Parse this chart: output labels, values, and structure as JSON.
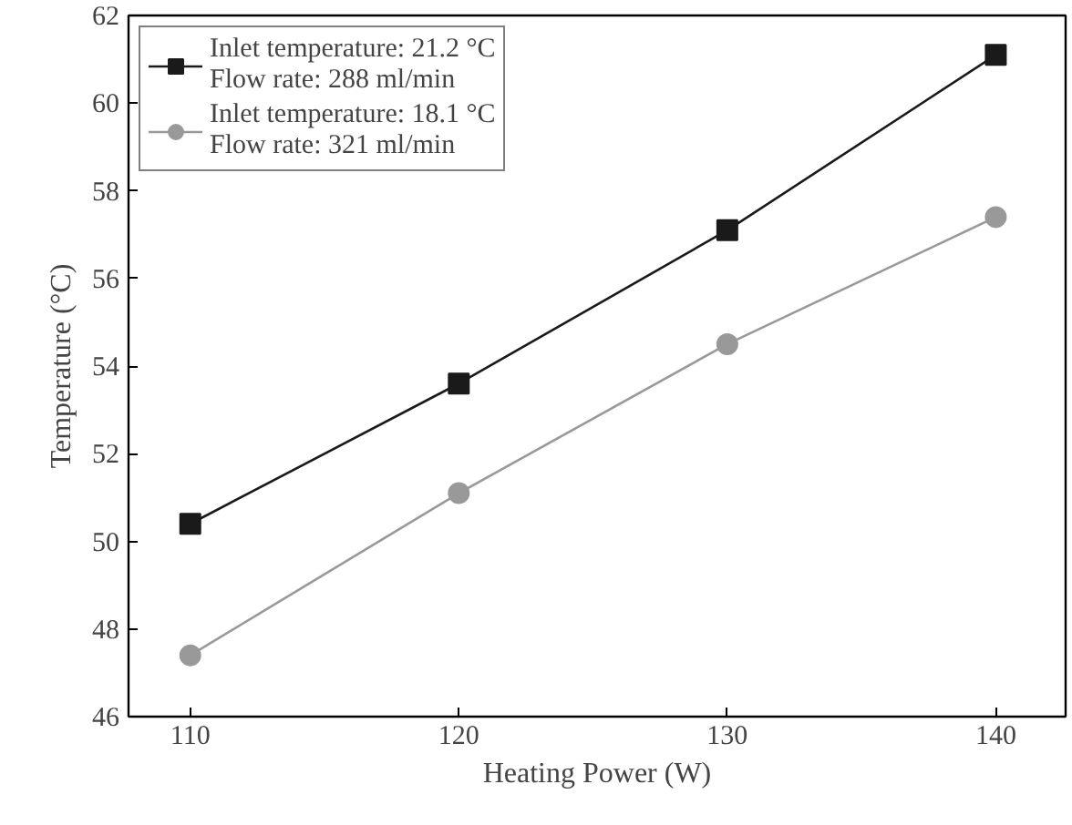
{
  "chart_data": {
    "type": "line",
    "xlabel": "Heating Power (W)",
    "ylabel": "Temperature (°C)",
    "x": [
      110,
      120,
      130,
      140
    ],
    "series": [
      {
        "name": "Inlet temperature: 21.2 °C\nFlow rate: 288 ml/min",
        "color": "#1a1a1a",
        "marker": "square",
        "values": [
          50.4,
          53.6,
          57.1,
          61.1
        ]
      },
      {
        "name": "Inlet temperature: 18.1 °C\nFlow rate: 321 ml/min",
        "color": "#999999",
        "marker": "circle",
        "values": [
          47.4,
          51.1,
          54.5,
          57.4
        ]
      }
    ],
    "xlim": [
      107.7,
      142.6
    ],
    "xticks": [
      110,
      120,
      130,
      140
    ],
    "ylim": [
      46,
      62
    ],
    "yticks": [
      46,
      48,
      50,
      52,
      54,
      56,
      58,
      60,
      62
    ],
    "grid": false,
    "legend": "top left",
    "line_style": "solid"
  }
}
